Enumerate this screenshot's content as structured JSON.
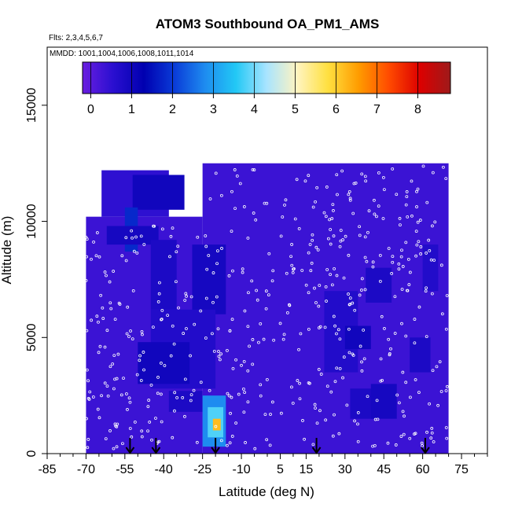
{
  "chart_data": {
    "type": "heatmap",
    "title": "ATOM3 Southbound OA_PM1_AMS",
    "flights_text": "Flts: 2,3,4,5,6,7",
    "mmdd_text": "MMDD: 1001,1004,1006,1008,1011,1014",
    "xlabel": "Latitude (deg N)",
    "ylabel": "Altitude (m)",
    "xlim": [
      -85,
      85
    ],
    "ylim": [
      0,
      17500
    ],
    "x_ticks": [
      -85,
      -70,
      -55,
      -40,
      -25,
      -10,
      5,
      15,
      30,
      45,
      60,
      75
    ],
    "x_minor_ticks": [
      -80,
      -75,
      -65,
      -60,
      -50,
      -45,
      -35,
      -30,
      -20,
      -15,
      -5,
      0,
      10,
      20,
      25,
      35,
      40,
      50,
      55,
      65,
      70,
      80,
      85
    ],
    "y_ticks": [
      0,
      5000,
      10000,
      15000
    ],
    "colorbar": {
      "min": -0.2,
      "max": 8.8,
      "ticks": [
        0,
        1,
        2,
        3,
        4,
        5,
        6,
        7,
        8
      ],
      "colors": [
        "#6a1ee0",
        "#2a0fd0",
        "#0000b0",
        "#0a3cd8",
        "#1e8cf0",
        "#22c8f5",
        "#a8e4ff",
        "#fff4c0",
        "#ffe040",
        "#ff9c00",
        "#ff4a00",
        "#dc0000",
        "#9e1a1a"
      ]
    },
    "grid": false,
    "legend": "none",
    "arrow_latitudes": [
      -53,
      -43,
      -20,
      19,
      61
    ],
    "cells": [
      {
        "lat": [
          -70,
          -25
        ],
        "alt": [
          0,
          10200
        ],
        "value": 0.35
      },
      {
        "lat": [
          -25,
          70
        ],
        "alt": [
          0,
          12500
        ],
        "value": 0.35
      },
      {
        "lat": [
          -64,
          -38
        ],
        "alt": [
          10200,
          12200
        ],
        "value": 0.5
      },
      {
        "lat": [
          -52,
          -32
        ],
        "alt": [
          10500,
          12000
        ],
        "value": 1.0
      },
      {
        "lat": [
          -55,
          -50
        ],
        "alt": [
          8700,
          10600
        ],
        "value": 1.8
      },
      {
        "lat": [
          -62,
          -42
        ],
        "alt": [
          9000,
          9800
        ],
        "value": 0.9
      },
      {
        "lat": [
          -45,
          -35
        ],
        "alt": [
          6200,
          9200
        ],
        "value": 0.8
      },
      {
        "lat": [
          -29,
          -16
        ],
        "alt": [
          6000,
          9000
        ],
        "value": 0.9
      },
      {
        "lat": [
          -45,
          -20
        ],
        "alt": [
          2800,
          6200
        ],
        "value": 0.7
      },
      {
        "lat": [
          -50,
          -30
        ],
        "alt": [
          3000,
          4800
        ],
        "value": 1.0
      },
      {
        "lat": [
          -38,
          -25
        ],
        "alt": [
          1800,
          2700
        ],
        "value": 0.8
      },
      {
        "lat": [
          22,
          35
        ],
        "alt": [
          3500,
          7000
        ],
        "value": 0.7
      },
      {
        "lat": [
          30,
          40
        ],
        "alt": [
          4500,
          5500
        ],
        "value": 1.0
      },
      {
        "lat": [
          38,
          48
        ],
        "alt": [
          6500,
          8000
        ],
        "value": 0.8
      },
      {
        "lat": [
          32,
          42
        ],
        "alt": [
          1500,
          2800
        ],
        "value": 0.8
      },
      {
        "lat": [
          40,
          50
        ],
        "alt": [
          1500,
          3000
        ],
        "value": 0.9
      },
      {
        "lat": [
          55,
          63
        ],
        "alt": [
          3500,
          5000
        ],
        "value": 0.8
      },
      {
        "lat": [
          60,
          66
        ],
        "alt": [
          7000,
          9000
        ],
        "value": 0.7
      },
      {
        "lat": [
          -25,
          -16
        ],
        "alt": [
          300,
          2500
        ],
        "value": 2.8
      },
      {
        "lat": [
          -23,
          -17
        ],
        "alt": [
          700,
          2000
        ],
        "value": 3.8
      },
      {
        "lat": [
          -21,
          -18
        ],
        "alt": [
          1000,
          1500
        ],
        "value": 6.2
      }
    ]
  }
}
